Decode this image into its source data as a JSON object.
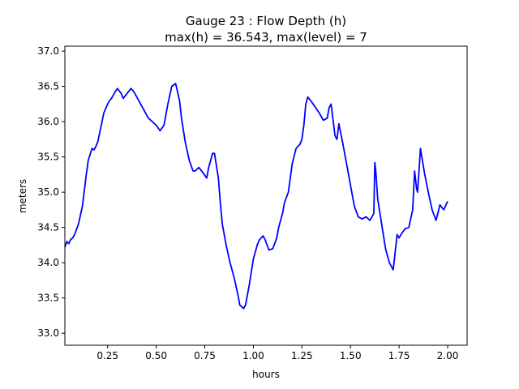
{
  "chart_data": {
    "type": "line",
    "title": "Gauge 23 : Flow Depth (h)",
    "subtitle": "max(h) =  36.543,    max(level) = 7",
    "xlabel": "hours",
    "ylabel": "meters",
    "xlim": [
      0.03,
      2.1
    ],
    "ylim": [
      32.83,
      37.07
    ],
    "xticks": [
      0.25,
      0.5,
      0.75,
      1.0,
      1.25,
      1.5,
      1.75,
      2.0
    ],
    "xtick_labels": [
      "0.25",
      "0.50",
      "0.75",
      "1.00",
      "1.25",
      "1.50",
      "1.75",
      "2.00"
    ],
    "yticks": [
      33.0,
      33.5,
      34.0,
      34.5,
      35.0,
      35.5,
      36.0,
      36.5,
      37.0
    ],
    "ytick_labels": [
      "33.0",
      "33.5",
      "34.0",
      "34.5",
      "35.0",
      "35.5",
      "36.0",
      "36.5",
      "37.0"
    ],
    "grid": false,
    "series": [
      {
        "color": "#0000ff",
        "x": [
          0.03,
          0.04,
          0.05,
          0.06,
          0.07,
          0.08,
          0.1,
          0.12,
          0.14,
          0.15,
          0.17,
          0.18,
          0.19,
          0.2,
          0.21,
          0.22,
          0.23,
          0.25,
          0.26,
          0.27,
          0.28,
          0.29,
          0.3,
          0.32,
          0.33,
          0.35,
          0.37,
          0.38,
          0.39,
          0.4,
          0.42,
          0.44,
          0.46,
          0.48,
          0.5,
          0.52,
          0.54,
          0.56,
          0.58,
          0.6,
          0.62,
          0.63,
          0.65,
          0.67,
          0.69,
          0.7,
          0.72,
          0.74,
          0.76,
          0.77,
          0.79,
          0.8,
          0.82,
          0.83,
          0.84,
          0.86,
          0.88,
          0.9,
          0.92,
          0.93,
          0.95,
          0.96,
          0.98,
          1.0,
          1.01,
          1.02,
          1.03,
          1.05,
          1.06,
          1.08,
          1.1,
          1.12,
          1.13,
          1.15,
          1.16,
          1.18,
          1.19,
          1.2,
          1.22,
          1.24,
          1.25,
          1.26,
          1.27,
          1.28,
          1.3,
          1.32,
          1.34,
          1.36,
          1.38,
          1.39,
          1.4,
          1.42,
          1.43,
          1.44,
          1.46,
          1.48,
          1.5,
          1.52,
          1.54,
          1.56,
          1.58,
          1.6,
          1.62,
          1.625,
          1.63,
          1.64,
          1.66,
          1.68,
          1.7,
          1.72,
          1.74,
          1.75,
          1.76,
          1.78,
          1.8,
          1.82,
          1.83,
          1.84,
          1.845,
          1.85,
          1.86,
          1.88,
          1.9,
          1.92,
          1.94,
          1.96,
          1.98,
          2.0
        ],
        "y": [
          34.22,
          34.3,
          34.27,
          34.33,
          34.35,
          34.4,
          34.55,
          34.8,
          35.25,
          35.45,
          35.62,
          35.6,
          35.65,
          35.72,
          35.85,
          35.98,
          36.12,
          36.25,
          36.3,
          36.33,
          36.38,
          36.43,
          36.47,
          36.4,
          36.33,
          36.4,
          36.47,
          36.44,
          36.4,
          36.35,
          36.25,
          36.15,
          36.05,
          36.0,
          35.95,
          35.87,
          35.95,
          36.25,
          36.5,
          36.54,
          36.3,
          36.05,
          35.7,
          35.45,
          35.3,
          35.3,
          35.35,
          35.28,
          35.2,
          35.35,
          35.55,
          35.55,
          35.2,
          34.85,
          34.55,
          34.25,
          34.0,
          33.8,
          33.55,
          33.4,
          33.35,
          33.4,
          33.7,
          34.05,
          34.15,
          34.25,
          34.32,
          34.38,
          34.33,
          34.18,
          34.2,
          34.35,
          34.5,
          34.7,
          34.85,
          35.0,
          35.2,
          35.4,
          35.62,
          35.68,
          35.75,
          35.95,
          36.25,
          36.35,
          36.28,
          36.2,
          36.12,
          36.02,
          36.05,
          36.2,
          36.25,
          35.8,
          35.75,
          35.97,
          35.7,
          35.4,
          35.1,
          34.8,
          34.65,
          34.62,
          34.65,
          34.6,
          34.7,
          35.42,
          35.3,
          34.9,
          34.55,
          34.2,
          34.0,
          33.9,
          34.4,
          34.35,
          34.4,
          34.48,
          34.5,
          34.75,
          35.3,
          35.05,
          35.0,
          35.2,
          35.62,
          35.28,
          35.0,
          34.75,
          34.6,
          34.82,
          34.75,
          34.87
        ]
      }
    ]
  }
}
